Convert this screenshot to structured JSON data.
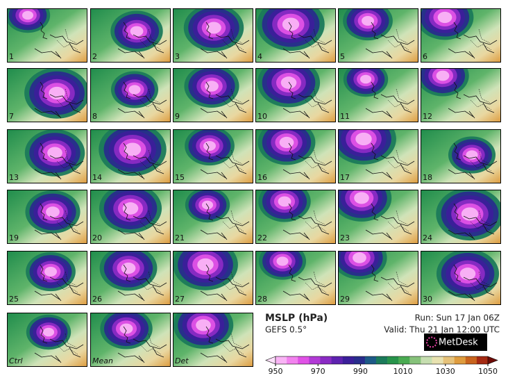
{
  "panels": [
    "1",
    "2",
    "3",
    "4",
    "5",
    "6",
    "7",
    "8",
    "9",
    "10",
    "11",
    "12",
    "13",
    "14",
    "15",
    "16",
    "17",
    "18",
    "19",
    "20",
    "21",
    "22",
    "23",
    "24",
    "25",
    "26",
    "27",
    "28",
    "29",
    "30",
    "Ctrl",
    "Mean",
    "Det"
  ],
  "title": "MSLP (hPa)",
  "model": "GEFS 0.5°",
  "run": "Run: Sun 17 Jan 06Z",
  "valid": "Valid: Thu 21 Jan 12:00 UTC",
  "brand": "MetDesk",
  "colorbar": {
    "ticks": [
      950,
      970,
      990,
      1010,
      1030,
      1050
    ],
    "lim": [
      950,
      1050
    ],
    "colors": [
      "#fde0fb",
      "#f9b4f5",
      "#f282ee",
      "#e052e6",
      "#b23ad6",
      "#8a2bc4",
      "#5e22b0",
      "#3b1f9a",
      "#282d8c",
      "#1d5a87",
      "#1b7a5a",
      "#27934a",
      "#4aab52",
      "#86c27a",
      "#c6deb0",
      "#e8e2b0",
      "#e6c27a",
      "#df9c3e",
      "#c9641e",
      "#a52a12",
      "#6e0b06"
    ]
  }
}
